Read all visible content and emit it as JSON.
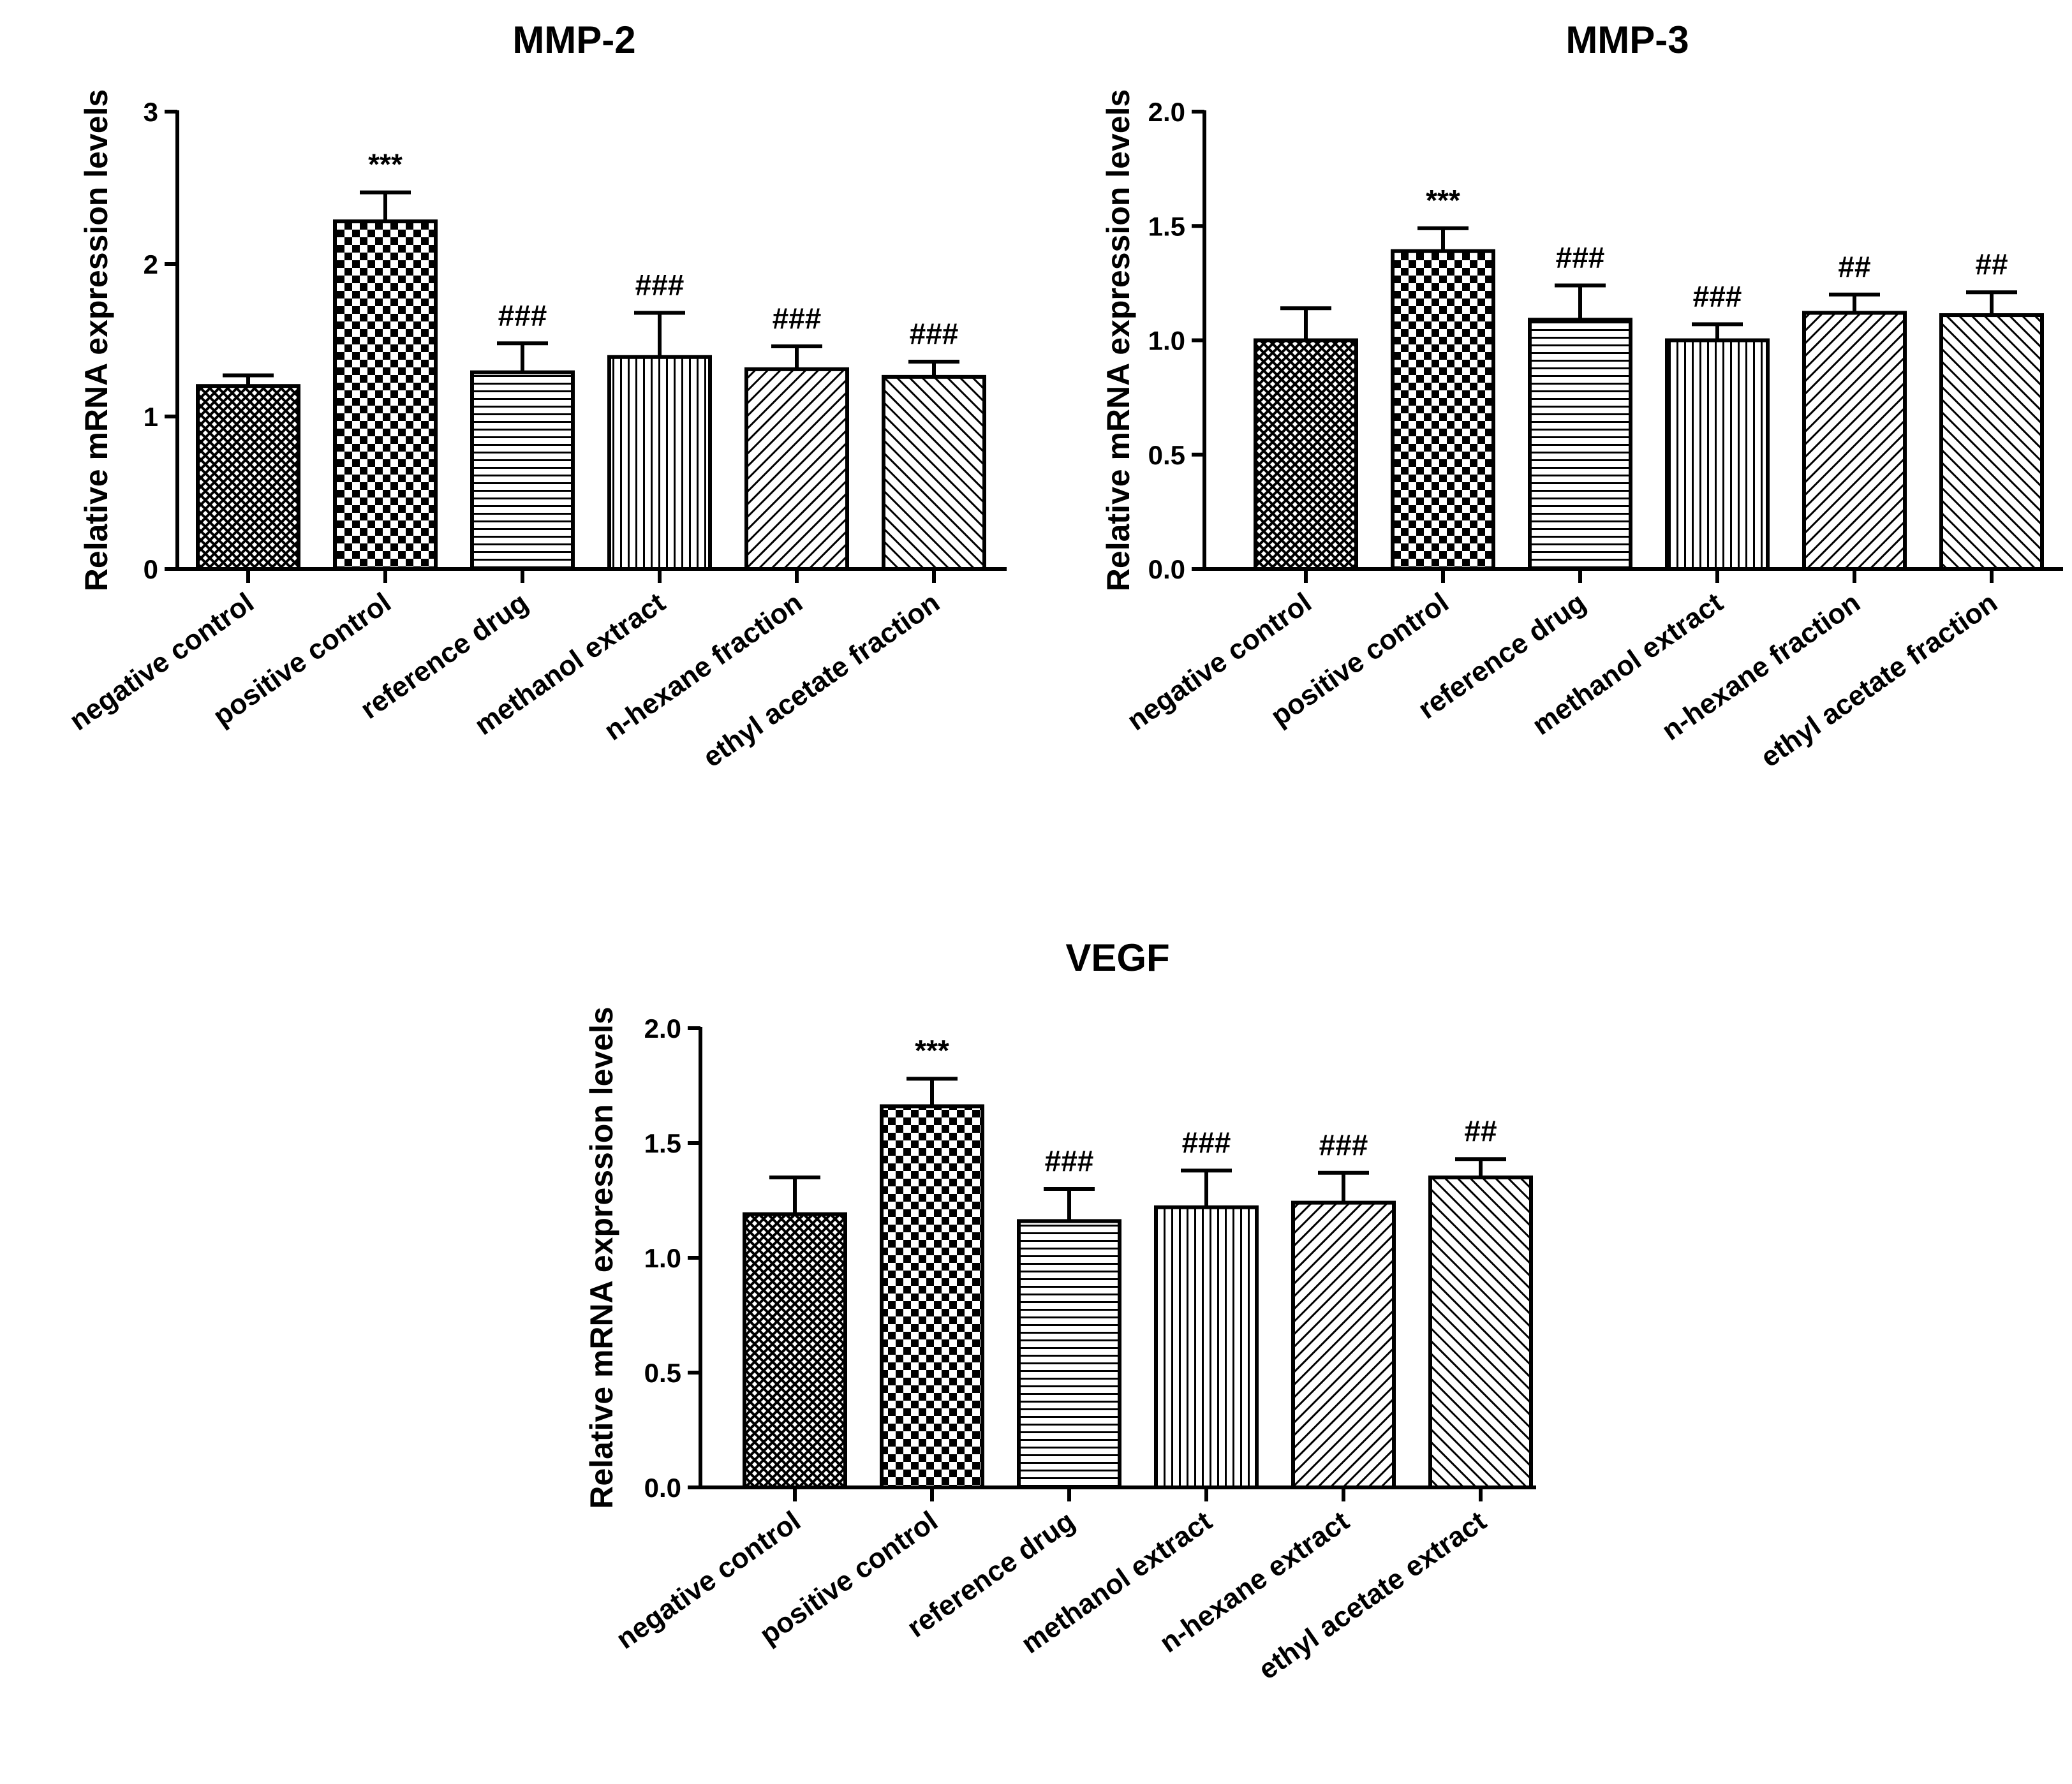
{
  "chart_data": [
    {
      "type": "bar",
      "title": "MMP-2",
      "ylabel": "Relative mRNA expression levels",
      "xlabel": "",
      "ylim": [
        0,
        3
      ],
      "yticks": [
        "0",
        "1",
        "2",
        "3"
      ],
      "yticks_values": [
        0,
        1,
        2,
        3
      ],
      "categories": [
        "negative control",
        "positive control",
        "reference drug",
        "methanol extract",
        "n-hexane fraction",
        "ethyl acetate fraction"
      ],
      "values": [
        1.2,
        2.28,
        1.29,
        1.39,
        1.31,
        1.26
      ],
      "errors": [
        0.07,
        0.19,
        0.19,
        0.29,
        0.15,
        0.1
      ],
      "annotations": [
        "",
        "***",
        "###",
        "###",
        "###",
        "###"
      ],
      "patterns": [
        "crosshatch",
        "checker",
        "hlines",
        "vlines",
        "diag-right",
        "diag-left"
      ],
      "grid": false
    },
    {
      "type": "bar",
      "title": "MMP-3",
      "ylabel": "Relative mRNA expression levels",
      "xlabel": "",
      "ylim": [
        0,
        2
      ],
      "yticks": [
        "0.0",
        "0.5",
        "1.0",
        "1.5",
        "2.0"
      ],
      "yticks_values": [
        0,
        0.5,
        1,
        1.5,
        2
      ],
      "categories": [
        "negative control",
        "positive control",
        "reference drug",
        "methanol extract",
        "n-hexane fraction",
        "ethyl acetate fraction"
      ],
      "values": [
        1.0,
        1.39,
        1.09,
        1.0,
        1.12,
        1.11
      ],
      "errors": [
        0.14,
        0.1,
        0.15,
        0.07,
        0.08,
        0.1
      ],
      "annotations": [
        "",
        "***",
        "###",
        "###",
        "##",
        "##"
      ],
      "patterns": [
        "crosshatch",
        "checker",
        "hlines",
        "vlines",
        "diag-right",
        "diag-left"
      ],
      "grid": false
    },
    {
      "type": "bar",
      "title": "VEGF",
      "ylabel": "Relative mRNA expression levels",
      "xlabel": "",
      "ylim": [
        0,
        2
      ],
      "yticks": [
        "0.0",
        "0.5",
        "1.0",
        "1.5",
        "2.0"
      ],
      "yticks_values": [
        0,
        0.5,
        1,
        1.5,
        2
      ],
      "categories": [
        "negative control",
        "positive control",
        "reference drug",
        "methanol extract",
        "n-hexane extract",
        "ethyl acetate extract"
      ],
      "values": [
        1.19,
        1.66,
        1.16,
        1.22,
        1.24,
        1.35
      ],
      "errors": [
        0.16,
        0.12,
        0.14,
        0.16,
        0.13,
        0.08
      ],
      "annotations": [
        "",
        "***",
        "###",
        "###",
        "###",
        "##"
      ],
      "patterns": [
        "crosshatch",
        "checker",
        "hlines",
        "vlines",
        "diag-right",
        "diag-left"
      ],
      "grid": false
    }
  ]
}
